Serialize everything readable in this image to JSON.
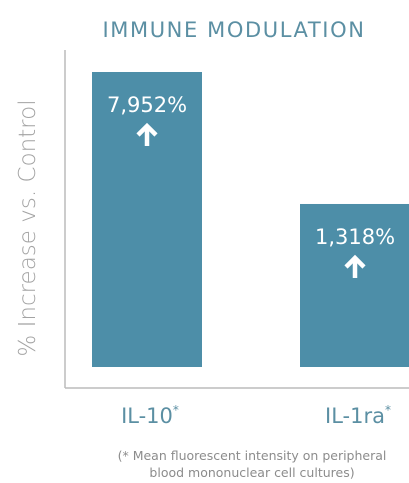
{
  "chart_data": {
    "type": "bar",
    "title": "IMMUNE MODULATION",
    "ylabel": "% Increase vs. Control",
    "categories": [
      "IL-10",
      "IL-1ra"
    ],
    "category_marks": [
      "*",
      "*"
    ],
    "values": [
      7952,
      1318
    ],
    "value_labels": [
      "7,952%",
      "1,318%"
    ],
    "legend": "none",
    "grid": false,
    "colors": {
      "bar": "#4d8ea8",
      "title": "#5b8fa3",
      "axis_label": "#a3a3a3",
      "axis_line": "#bcbcbc",
      "footnote": "#8c8c8c"
    },
    "footnote": [
      "(* Mean fluorescent intensity on peripheral",
      "blood mononuclear cell cultures)"
    ]
  }
}
